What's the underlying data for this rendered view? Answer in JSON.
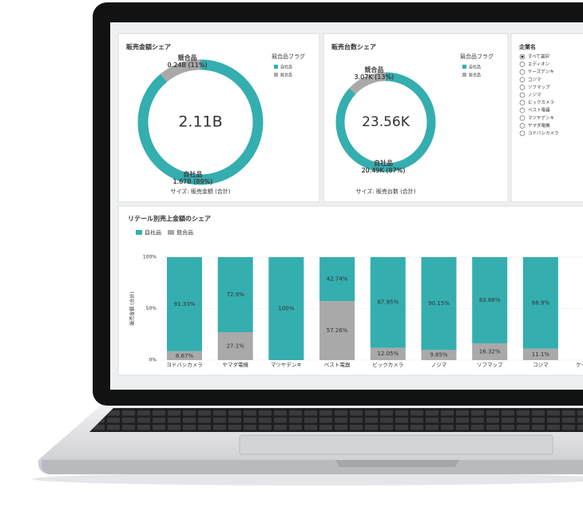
{
  "donuts": [
    {
      "title": "販売金額シェア",
      "center": "2.11B",
      "legend_title": "競合品フラグ",
      "caption": "サイズ: 販売金額 (合計)",
      "slices": [
        {
          "name": "自社品",
          "color": "#35aeb0",
          "value": 89,
          "label": "1.87B (89%)"
        },
        {
          "name": "競合品",
          "color": "#a9a9a9",
          "value": 11,
          "label": "0.24B (11%)"
        }
      ]
    },
    {
      "title": "販売台数シェア",
      "center": "23.56K",
      "legend_title": "競合品フラグ",
      "caption": "サイズ: 販売台数 (合計)",
      "slices": [
        {
          "name": "自社品",
          "color": "#35aeb0",
          "value": 87,
          "label": "20.49K (87%)"
        },
        {
          "name": "競合品",
          "color": "#a9a9a9",
          "value": 13,
          "label": "3.07K (13%)"
        }
      ]
    }
  ],
  "filter": {
    "title": "企業名",
    "options": [
      "すべて選択",
      "エディオン",
      "ケーズデンキ",
      "コジマ",
      "ソフマップ",
      "ノジマ",
      "ビックカメラ",
      "ベスト電器",
      "マツヤデンキ",
      "ヤマダ電機",
      "ヨドバシカメラ"
    ]
  },
  "bar_chart": {
    "title": "リテール別売上金額のシェア",
    "y_label": "販売金額 (合計)",
    "ylim": [
      0,
      100
    ],
    "yticks": [
      {
        "value": 0,
        "label": "0%"
      },
      {
        "value": 50,
        "label": "50%"
      },
      {
        "value": 100,
        "label": "100%"
      }
    ],
    "categories": [
      "ヨドバシカメラ",
      "ヤマダ電機",
      "マツヤデンキ",
      "ベスト電器",
      "ビックカメラ",
      "ノジマ",
      "ソフマップ",
      "コジマ",
      "ケーズデンキ"
    ],
    "series": [
      {
        "name": "競合品",
        "color": "#a9a9a9",
        "values": [
          8.67,
          27.1,
          0,
          57.26,
          12.05,
          9.85,
          16.32,
          11.1,
          null
        ],
        "value_labels": [
          "8.67%",
          "27.1%",
          null,
          "57.26%",
          "12.05%",
          "9.85%",
          "16.32%",
          "11.1%",
          null
        ]
      },
      {
        "name": "自社品",
        "color": "#35aeb0",
        "values": [
          91.33,
          72.9,
          100,
          42.74,
          87.95,
          90.15,
          83.68,
          88.9,
          null
        ],
        "value_labels": [
          "91.33%",
          "72.9%",
          "100%",
          "42.74%",
          "87.95%",
          "90.15%",
          "83.68%",
          "88.9%",
          null
        ]
      }
    ]
  }
}
